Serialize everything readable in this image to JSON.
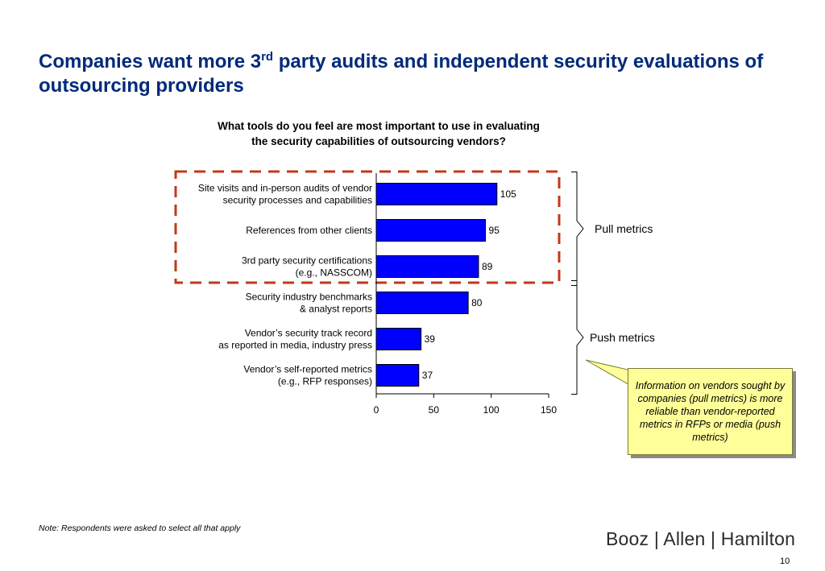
{
  "slide": {
    "title_part1": "Companies want more 3",
    "title_sup": "rd",
    "title_part2": " party audits and independent security evaluations of outsourcing providers",
    "note": "Note:  Respondents were asked to select all that apply",
    "brand": "Booz | Allen | Hamilton",
    "page_number": "10"
  },
  "colors": {
    "bar_fill": "#0000ff",
    "bar_stroke": "#000000",
    "dashed_box": "#c0391b",
    "callout_fill": "#ffff99",
    "title": "#002a7a"
  },
  "chart_data": {
    "type": "bar",
    "orientation": "horizontal",
    "title_line1": "What tools do you feel are most important to use in evaluating",
    "title_line2": "the security capabilities of outsourcing vendors?",
    "categories": [
      [
        "Site visits and in-person audits of vendor",
        "security processes and capabilities"
      ],
      [
        "References from other clients"
      ],
      [
        "3rd party security certifications",
        "(e.g., NASSCOM)"
      ],
      [
        "Security industry benchmarks",
        "& analyst reports"
      ],
      [
        "Vendor’s security track record",
        "as reported in media, industry press"
      ],
      [
        "Vendor’s self-reported metrics",
        "(e.g., RFP responses)"
      ]
    ],
    "values": [
      105,
      95,
      89,
      80,
      39,
      37
    ],
    "xlim": [
      0,
      150
    ],
    "xticks": [
      0,
      50,
      100,
      150
    ],
    "grid": false,
    "groups": [
      {
        "label": "Pull metrics",
        "first": 0,
        "last": 2
      },
      {
        "label": "Push metrics",
        "first": 3,
        "last": 5
      }
    ],
    "callout": "Information on vendors sought by companies  (pull metrics) is more reliable than vendor-reported metrics in RFPs or media (push metrics)"
  }
}
